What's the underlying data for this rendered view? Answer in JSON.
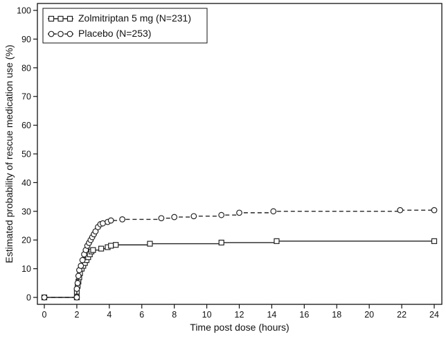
{
  "chart_data": {
    "type": "line",
    "xlabel": "Time post dose (hours)",
    "ylabel": "Estimated probability of rescue medication use (%)",
    "xlim": [
      0,
      24
    ],
    "ylim": [
      0,
      100
    ],
    "x_ticks": [
      0,
      2,
      4,
      6,
      8,
      10,
      12,
      14,
      16,
      18,
      20,
      22,
      24
    ],
    "y_ticks": [
      0,
      10,
      20,
      30,
      40,
      50,
      60,
      70,
      80,
      90,
      100
    ],
    "grid": false,
    "legend_position": "top-left",
    "series": [
      {
        "name": "Zolmitriptan 5 mg (N=231)",
        "marker": "square",
        "line_style": "solid",
        "color": "#222222",
        "points": [
          [
            0,
            0
          ],
          [
            2,
            0
          ],
          [
            2,
            2
          ],
          [
            2.05,
            4
          ],
          [
            2.1,
            5.5
          ],
          [
            2.15,
            7
          ],
          [
            2.2,
            8.5
          ],
          [
            2.3,
            10
          ],
          [
            2.4,
            11
          ],
          [
            2.5,
            12
          ],
          [
            2.6,
            13
          ],
          [
            2.7,
            14
          ],
          [
            2.8,
            15
          ],
          [
            2.9,
            16
          ],
          [
            3,
            16.5
          ],
          [
            3.5,
            17
          ],
          [
            3.9,
            17.5
          ],
          [
            4.1,
            18
          ],
          [
            4.4,
            18.3
          ],
          [
            6.5,
            18.7
          ],
          [
            10.9,
            19.1
          ],
          [
            14.3,
            19.6
          ],
          [
            24,
            19.6
          ]
        ]
      },
      {
        "name": "Placebo (N=253)",
        "marker": "circle",
        "line_style": "dashed",
        "color": "#222222",
        "points": [
          [
            0,
            0
          ],
          [
            2,
            0
          ],
          [
            2,
            3
          ],
          [
            2.05,
            5
          ],
          [
            2.1,
            7.5
          ],
          [
            2.15,
            9.5
          ],
          [
            2.25,
            11
          ],
          [
            2.35,
            13
          ],
          [
            2.45,
            15
          ],
          [
            2.55,
            16.5
          ],
          [
            2.65,
            18
          ],
          [
            2.75,
            19
          ],
          [
            2.85,
            20
          ],
          [
            2.95,
            21
          ],
          [
            3.05,
            22
          ],
          [
            3.15,
            23
          ],
          [
            3.3,
            24.5
          ],
          [
            3.45,
            25.5
          ],
          [
            3.6,
            25.8
          ],
          [
            3.9,
            26.3
          ],
          [
            4.1,
            26.8
          ],
          [
            4.8,
            27.2
          ],
          [
            7.2,
            27.6
          ],
          [
            8,
            28
          ],
          [
            9.2,
            28.3
          ],
          [
            10.9,
            28.7
          ],
          [
            12,
            29.5
          ],
          [
            14.1,
            30
          ],
          [
            21.9,
            30.4
          ],
          [
            24,
            30.4
          ]
        ]
      }
    ]
  }
}
